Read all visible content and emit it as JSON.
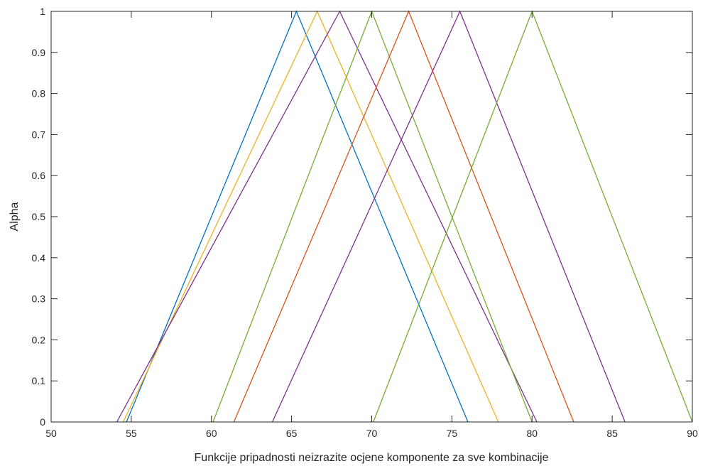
{
  "chart_data": {
    "type": "line",
    "title": "",
    "xlabel": "Funkcije pripadnosti neizrazite ocjene komponente za sve kombinacije",
    "ylabel": "Alpha",
    "xlim": [
      50,
      90
    ],
    "ylim": [
      0,
      1
    ],
    "xticks": [
      "50",
      "55",
      "60",
      "65",
      "70",
      "75",
      "80",
      "85",
      "90"
    ],
    "yticks": [
      "0",
      "0.1",
      "0.2",
      "0.3",
      "0.4",
      "0.5",
      "0.6",
      "0.7",
      "0.8",
      "0.9",
      "1"
    ],
    "grid": false,
    "legend": "none",
    "series": [
      {
        "color": "#0072BD",
        "x": [
          54.7,
          65.3,
          76.0
        ],
        "y": [
          0,
          1,
          0
        ]
      },
      {
        "color": "#EDB120",
        "x": [
          54.5,
          66.6,
          77.9
        ],
        "y": [
          0,
          1,
          0
        ]
      },
      {
        "color": "#7E2F8E",
        "x": [
          54.1,
          68.0,
          80.3
        ],
        "y": [
          0,
          1,
          0
        ]
      },
      {
        "color": "#77AC30",
        "x": [
          60.1,
          70.0,
          80.0
        ],
        "y": [
          0,
          1,
          0
        ]
      },
      {
        "color": "#D95319",
        "x": [
          61.4,
          72.3,
          82.6
        ],
        "y": [
          0,
          1,
          0
        ]
      },
      {
        "color": "#7E2F8E",
        "x": [
          63.8,
          75.5,
          85.8
        ],
        "y": [
          0,
          1,
          0
        ]
      },
      {
        "color": "#77AC30",
        "x": [
          70.1,
          80.0,
          90.0
        ],
        "y": [
          0,
          1,
          0
        ]
      }
    ]
  }
}
